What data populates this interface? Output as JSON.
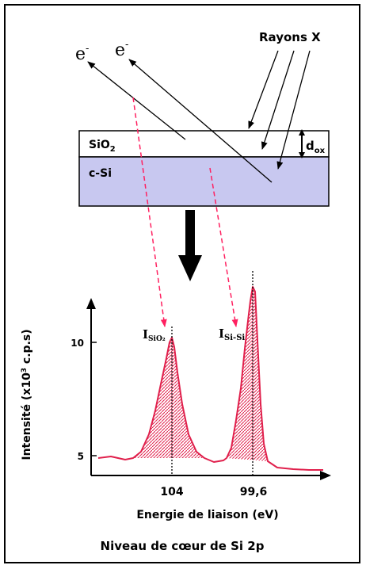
{
  "diagram": {
    "electron_label": "e",
    "electron_charge": "-",
    "xray_label": "Rayons X",
    "oxide_layer_prefix": "SiO",
    "oxide_layer_subscript": "2",
    "substrate_label": "c-Si",
    "thickness_label_main": "d",
    "thickness_label_sub": "ox"
  },
  "chart_data": {
    "type": "line",
    "ylabel_prefix": "Intensité (x10",
    "ylabel_sup": "3",
    "ylabel_suffix": " c.p.s)",
    "xlabel": "Energie de liaison (eV)",
    "caption": "Niveau de cœur de Si 2p",
    "ytick_labels": [
      "10",
      "5"
    ],
    "xtick_labels": [
      "104",
      "99,6"
    ],
    "peaks": [
      {
        "label_main": "I",
        "label_sub": "SiO₂",
        "position_label": "104",
        "relative_height": 0.64
      },
      {
        "label_main": "I",
        "label_sub": "Si-Si",
        "position_label": "99,6",
        "relative_height": 0.92
      }
    ]
  },
  "colors": {
    "substrate_fill": "#c8c8f0",
    "spectrum": "#e0204c",
    "dashed_arrow": "#ff2060"
  }
}
